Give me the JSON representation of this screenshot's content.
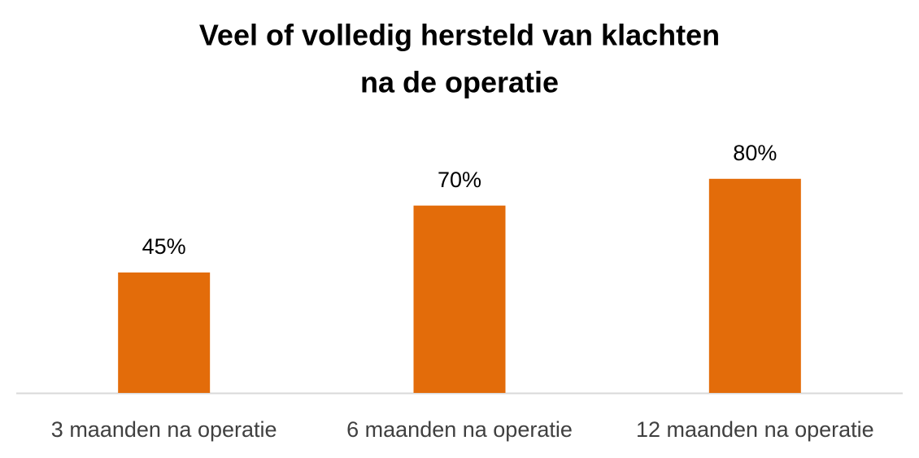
{
  "chart_data": {
    "type": "bar",
    "title": [
      "Veel of volledig hersteld van klachten",
      "na de operatie"
    ],
    "categories": [
      "3 maanden na operatie",
      "6 maanden na operatie",
      "12 maanden na operatie"
    ],
    "values": [
      45,
      70,
      80
    ],
    "value_labels": [
      "45%",
      "70%",
      "80%"
    ],
    "color": "#e36c0a"
  }
}
